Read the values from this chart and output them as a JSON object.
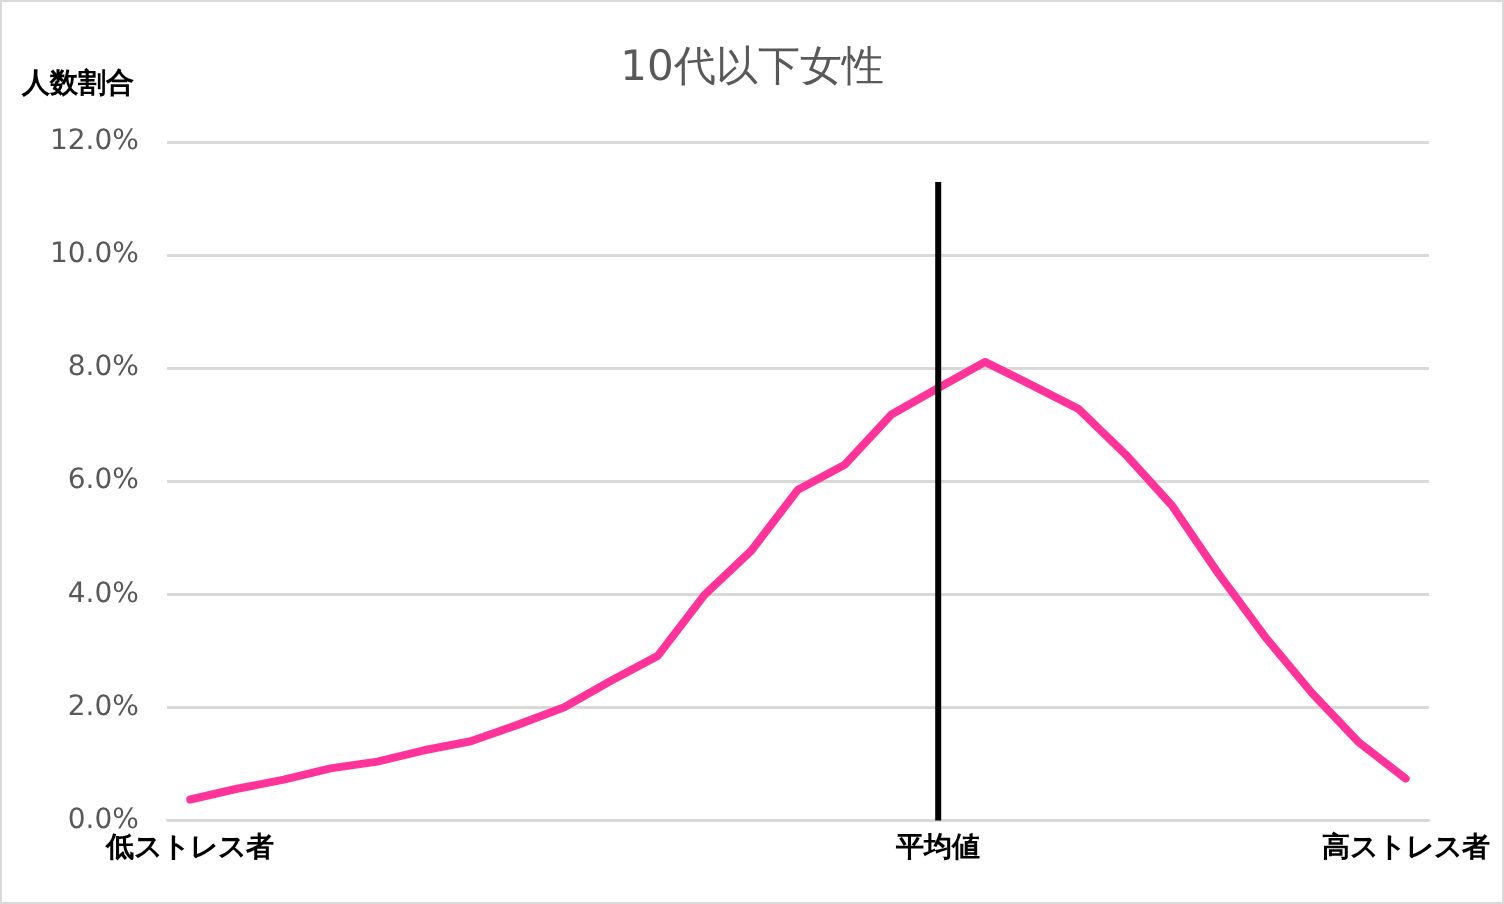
{
  "chart_data": {
    "type": "line",
    "title": "10代以下女性",
    "ylabel": "人数割合",
    "categories": [
      "低ストレス者",
      null,
      null,
      null,
      null,
      null,
      null,
      null,
      null,
      null,
      null,
      null,
      null,
      null,
      null,
      null,
      "平均値",
      null,
      null,
      null,
      null,
      null,
      null,
      null,
      null,
      null,
      "高ストレス者"
    ],
    "series": [
      {
        "color": "#ff3399",
        "values": [
          0.37,
          0.56,
          0.72,
          0.92,
          1.04,
          1.24,
          1.4,
          1.69,
          2.0,
          2.47,
          2.91,
          3.99,
          4.77,
          5.85,
          6.29,
          7.18,
          7.65,
          8.11,
          7.7,
          7.28,
          6.48,
          5.57,
          4.36,
          3.24,
          2.25,
          1.38,
          0.74
        ]
      }
    ],
    "ylim": [
      0,
      12
    ],
    "yticks": [
      {
        "value": 0,
        "label": "0.0%"
      },
      {
        "value": 2,
        "label": "2.0%"
      },
      {
        "value": 4,
        "label": "4.0%"
      },
      {
        "value": 6,
        "label": "6.0%"
      },
      {
        "value": 8,
        "label": "8.0%"
      },
      {
        "value": 10,
        "label": "10.0%"
      },
      {
        "value": 12,
        "label": "12.0%"
      }
    ],
    "grid": "y",
    "legend": false,
    "marker": "none",
    "line_style": "solid",
    "ref_lines": [
      {
        "axis": "x",
        "value": "平均値",
        "color": "#000000"
      }
    ]
  }
}
